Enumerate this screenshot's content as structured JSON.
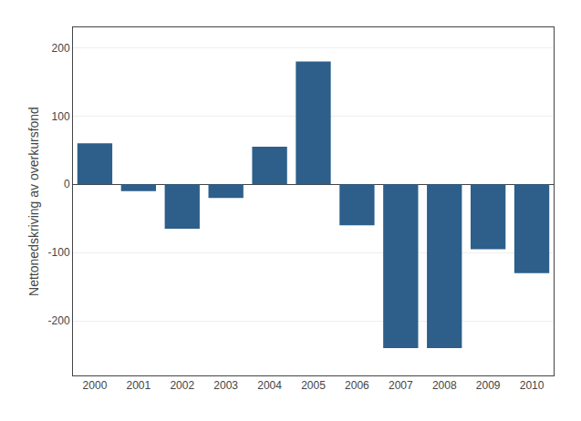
{
  "chart_data": {
    "type": "bar",
    "categories": [
      "2000",
      "2001",
      "2002",
      "2003",
      "2004",
      "2005",
      "2006",
      "2007",
      "2008",
      "2009",
      "2010"
    ],
    "values": [
      60,
      -10,
      -65,
      -20,
      55,
      180,
      -60,
      -240,
      -240,
      -95,
      -130
    ],
    "color": "#2d5f8a",
    "ylabel": "Nettonedskriving av overkursfond",
    "ylim": [
      -280,
      230
    ],
    "yticks": [
      -200,
      -100,
      0,
      100,
      200
    ],
    "grid": true
  }
}
